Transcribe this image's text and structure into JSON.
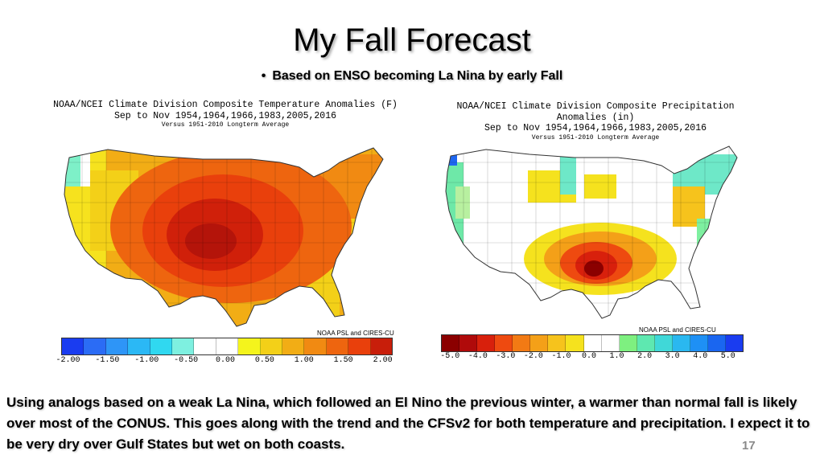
{
  "slide": {
    "title": "My Fall Forecast",
    "bullet": "Based on ENSO becoming La Nina by early Fall",
    "body": "Using analogs based on a weak La Nina, which followed an El Nino the previous winter,  a warmer than normal fall is likely over most of the CONUS.   This goes along with the trend and the CFSv2 for both temperature and precipitation.  I expect it to be very dry over Gulf States but wet on both coasts.",
    "number": "17"
  },
  "maps": [
    {
      "heading1": "NOAA/NCEI Climate Division Composite Temperature Anomalies (F)",
      "heading2": "Sep to Nov  1954,1964,1966,1983,2005,2016",
      "heading3": "Versus 1951-2010 Longterm Average",
      "credit": "NOAA PSL and CIRES-CU",
      "colorbar": [
        "#1a3cf0",
        "#2b6cf5",
        "#2e95f7",
        "#2bb8f5",
        "#30d8f0",
        "#7ef0e0",
        "#ffffff",
        "#ffffff",
        "#f4f41c",
        "#f3d018",
        "#f2ad15",
        "#f18a12",
        "#ee650f",
        "#e9400c",
        "#c81e0a"
      ],
      "tick_labels": [
        "-2.00",
        "-1.50",
        "-1.00",
        "-0.50",
        "0.00",
        "0.50",
        "1.00",
        "1.50",
        "2.00"
      ]
    },
    {
      "heading1": "NOAA/NCEI Climate Division Composite Precipitation Anomalies (in)",
      "heading2": "Sep to Nov  1954,1964,1966,1983,2005,2016",
      "heading3": "Versus 1951-2010 Longterm Average",
      "credit": "NOAA PSL and CIRES-CU",
      "colorbar": [
        "#8b0000",
        "#b00a0a",
        "#d8200c",
        "#ee4a10",
        "#f27a14",
        "#f4a018",
        "#f6c31c",
        "#f5e21e",
        "#ffffff",
        "#ffffff",
        "#7ef080",
        "#5ee8b0",
        "#40d8d8",
        "#2ab8f0",
        "#1e90f5",
        "#1a66f0",
        "#1a3cf0"
      ],
      "tick_labels": [
        "-5.0",
        "-4.0",
        "-3.0",
        "-2.0",
        "-1.0",
        "0.0",
        "1.0",
        "2.0",
        "3.0",
        "4.0",
        "5.0"
      ]
    }
  ]
}
